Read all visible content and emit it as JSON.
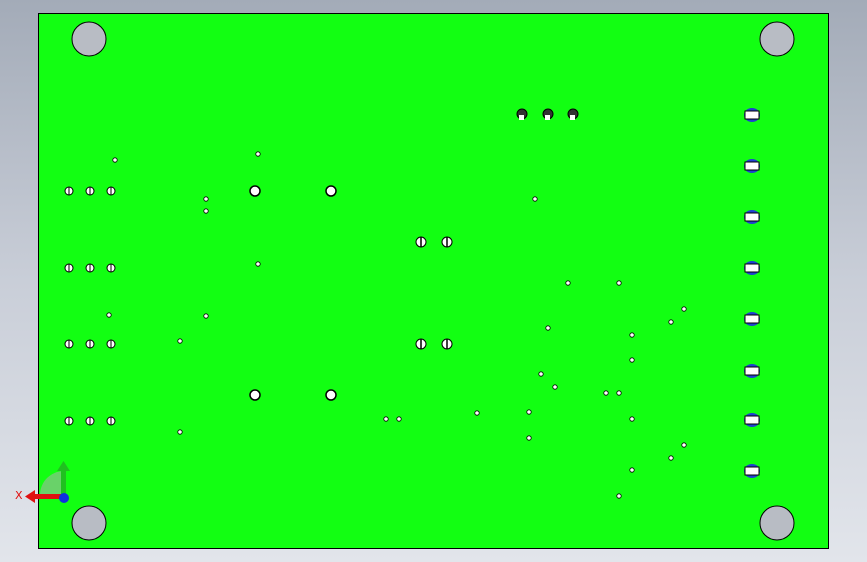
{
  "viewport": {
    "board_color": "#12ff12",
    "background_color": "#c9ced8",
    "mounting_hole_color": "#b8bcc4"
  },
  "triad": {
    "x_label": "X",
    "x_color": "#e01010",
    "y_color": "#20c020",
    "z_color": "#1030e0"
  }
}
